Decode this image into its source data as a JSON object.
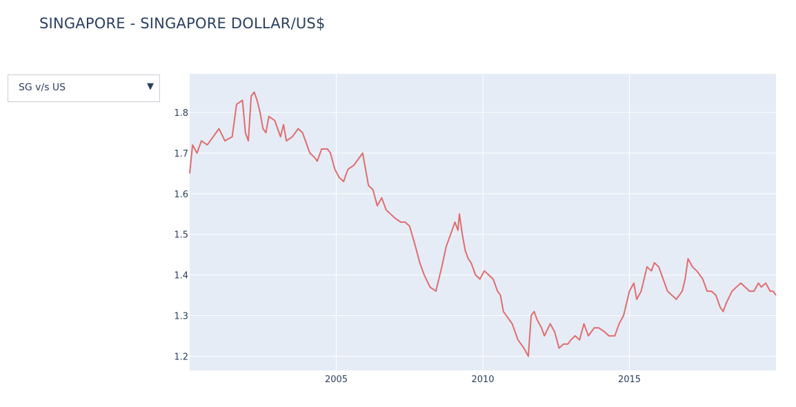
{
  "page": {
    "title": "SINGAPORE - SINGAPORE DOLLAR/US$"
  },
  "dropdown": {
    "selected": "SG v/s US",
    "arrow_icon": "triangle-down-icon"
  },
  "chart_data": {
    "type": "line",
    "title": "SINGAPORE - SINGAPORE DOLLAR/US$",
    "xlabel": "",
    "ylabel": "",
    "x_range": [
      2000.0,
      2020.0
    ],
    "y_range": [
      1.165,
      1.895
    ],
    "x_ticks": [
      2005,
      2010,
      2015
    ],
    "x_tick_labels": [
      "2005",
      "2010",
      "2015"
    ],
    "y_ticks": [
      1.2,
      1.3,
      1.4,
      1.5,
      1.6,
      1.7,
      1.8
    ],
    "y_tick_labels": [
      "1.2",
      "1.3",
      "1.4",
      "1.5",
      "1.6",
      "1.7",
      "1.8"
    ],
    "grid": true,
    "colors": {
      "line": "#e06c6c",
      "plot_bg": "#e5ecf6",
      "grid": "#ffffff"
    },
    "series": [
      {
        "x": [
          2000.0,
          2000.1,
          2000.25,
          2000.4,
          2000.6,
          2000.8,
          2001.0,
          2001.2,
          2001.45,
          2001.6,
          2001.8,
          2001.9,
          2002.0,
          2002.1,
          2002.2,
          2002.3,
          2002.4,
          2002.5,
          2002.6,
          2002.7,
          2002.9,
          2003.0,
          2003.1,
          2003.2,
          2003.3,
          2003.5,
          2003.7,
          2003.85,
          2004.0,
          2004.1,
          2004.25,
          2004.35,
          2004.5,
          2004.7,
          2004.8,
          2004.95,
          2005.1,
          2005.25,
          2005.4,
          2005.6,
          2005.8,
          2005.9,
          2006.0,
          2006.1,
          2006.25,
          2006.4,
          2006.55,
          2006.7,
          2006.85,
          2007.0,
          2007.2,
          2007.35,
          2007.5,
          2007.7,
          2007.85,
          2008.0,
          2008.2,
          2008.4,
          2008.6,
          2008.75,
          2008.9,
          2009.05,
          2009.15,
          2009.2,
          2009.3,
          2009.4,
          2009.5,
          2009.6,
          2009.75,
          2009.9,
          2010.05,
          2010.2,
          2010.35,
          2010.5,
          2010.6,
          2010.7,
          2010.9,
          2011.0,
          2011.2,
          2011.4,
          2011.55,
          2011.65,
          2011.75,
          2011.85,
          2012.0,
          2012.1,
          2012.3,
          2012.45,
          2012.6,
          2012.75,
          2012.9,
          2013.0,
          2013.15,
          2013.3,
          2013.45,
          2013.6,
          2013.8,
          2013.95,
          2014.15,
          2014.3,
          2014.5,
          2014.65,
          2014.8,
          2015.0,
          2015.15,
          2015.25,
          2015.4,
          2015.6,
          2015.75,
          2015.85,
          2016.0,
          2016.15,
          2016.3,
          2016.45,
          2016.6,
          2016.8,
          2016.9,
          2017.0,
          2017.15,
          2017.3,
          2017.5,
          2017.65,
          2017.8,
          2017.95,
          2018.1,
          2018.2,
          2018.3,
          2018.5,
          2018.65,
          2018.8,
          2018.95,
          2019.1,
          2019.25,
          2019.4,
          2019.5,
          2019.65,
          2019.8,
          2019.9,
          2020.0
        ],
        "y": [
          1.65,
          1.72,
          1.7,
          1.73,
          1.72,
          1.74,
          1.76,
          1.73,
          1.74,
          1.82,
          1.83,
          1.75,
          1.73,
          1.84,
          1.85,
          1.83,
          1.8,
          1.76,
          1.75,
          1.79,
          1.78,
          1.76,
          1.74,
          1.77,
          1.73,
          1.74,
          1.76,
          1.75,
          1.72,
          1.7,
          1.69,
          1.68,
          1.71,
          1.71,
          1.7,
          1.66,
          1.64,
          1.63,
          1.66,
          1.67,
          1.69,
          1.7,
          1.66,
          1.62,
          1.61,
          1.57,
          1.59,
          1.56,
          1.55,
          1.54,
          1.53,
          1.53,
          1.52,
          1.47,
          1.43,
          1.4,
          1.37,
          1.36,
          1.42,
          1.47,
          1.5,
          1.53,
          1.51,
          1.55,
          1.5,
          1.46,
          1.44,
          1.43,
          1.4,
          1.39,
          1.41,
          1.4,
          1.39,
          1.36,
          1.35,
          1.31,
          1.29,
          1.28,
          1.24,
          1.22,
          1.2,
          1.3,
          1.31,
          1.29,
          1.27,
          1.25,
          1.28,
          1.26,
          1.22,
          1.23,
          1.23,
          1.24,
          1.25,
          1.24,
          1.28,
          1.25,
          1.27,
          1.27,
          1.26,
          1.25,
          1.25,
          1.28,
          1.3,
          1.36,
          1.38,
          1.34,
          1.36,
          1.42,
          1.41,
          1.43,
          1.42,
          1.39,
          1.36,
          1.35,
          1.34,
          1.36,
          1.39,
          1.44,
          1.42,
          1.41,
          1.39,
          1.36,
          1.36,
          1.35,
          1.32,
          1.31,
          1.33,
          1.36,
          1.37,
          1.38,
          1.37,
          1.36,
          1.36,
          1.38,
          1.37,
          1.38,
          1.36,
          1.36,
          1.35
        ]
      }
    ]
  }
}
